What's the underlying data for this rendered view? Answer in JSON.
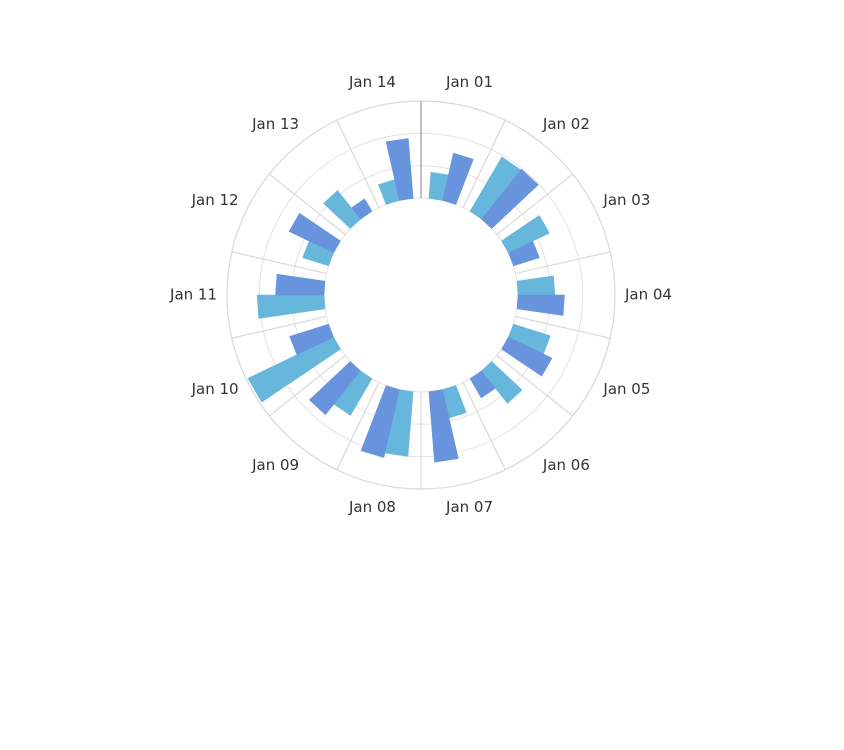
{
  "chart_data": {
    "type": "bar",
    "subtype": "radial-bar",
    "categories": [
      "Jan 01",
      "Jan 02",
      "Jan 03",
      "Jan 04",
      "Jan 05",
      "Jan 06",
      "Jan 07",
      "Jan 08",
      "Jan 09",
      "Jan 10",
      "Jan 11",
      "Jan 12",
      "Jan 13",
      "Jan 14"
    ],
    "series": [
      {
        "color": "#67b7dc",
        "values": [
          27,
          65,
          47,
          38,
          40,
          43,
          30,
          67,
          44,
          98,
          69,
          28,
          38,
          22
        ]
      },
      {
        "color": "#6794dc",
        "values": [
          50,
          66,
          28,
          48,
          50,
          23,
          73,
          72,
          58,
          42,
          50,
          51,
          15,
          62
        ]
      }
    ],
    "axis": {
      "min": 0,
      "max": 100,
      "gridlines": [
        0,
        33.3,
        66.7,
        100
      ]
    },
    "grid": true,
    "legend": "none"
  }
}
